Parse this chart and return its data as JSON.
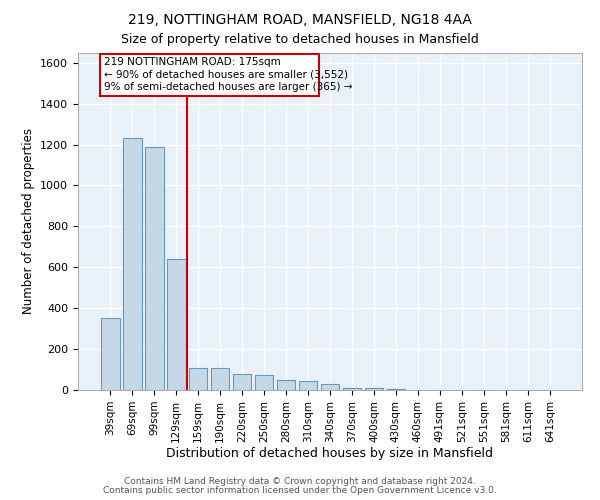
{
  "title1": "219, NOTTINGHAM ROAD, MANSFIELD, NG18 4AA",
  "title2": "Size of property relative to detached houses in Mansfield",
  "xlabel": "Distribution of detached houses by size in Mansfield",
  "ylabel": "Number of detached properties",
  "categories": [
    "39sqm",
    "69sqm",
    "99sqm",
    "129sqm",
    "159sqm",
    "190sqm",
    "220sqm",
    "250sqm",
    "280sqm",
    "310sqm",
    "340sqm",
    "370sqm",
    "400sqm",
    "430sqm",
    "460sqm",
    "491sqm",
    "521sqm",
    "551sqm",
    "581sqm",
    "611sqm",
    "641sqm"
  ],
  "values": [
    350,
    1230,
    1190,
    640,
    110,
    110,
    80,
    75,
    50,
    45,
    30,
    10,
    10,
    5,
    0,
    0,
    0,
    0,
    0,
    0,
    0
  ],
  "bar_color": "#c5d8e8",
  "bar_edge_color": "#6699bb",
  "bg_color": "#e8f0f8",
  "grid_color": "#ffffff",
  "vline_x": 3.5,
  "vline_color": "#cc0000",
  "annotation_line1": "219 NOTTINGHAM ROAD: 175sqm",
  "annotation_line2": "← 90% of detached houses are smaller (3,552)",
  "annotation_line3": "9% of semi-detached houses are larger (365) →",
  "annotation_box_color": "#ffffff",
  "annotation_border_color": "#cc0000",
  "footer1": "Contains HM Land Registry data © Crown copyright and database right 2024.",
  "footer2": "Contains public sector information licensed under the Open Government Licence v3.0.",
  "ylim": [
    0,
    1650
  ],
  "yticks": [
    0,
    200,
    400,
    600,
    800,
    1000,
    1200,
    1400,
    1600
  ],
  "figsize": [
    6.0,
    5.0
  ],
  "dpi": 100
}
